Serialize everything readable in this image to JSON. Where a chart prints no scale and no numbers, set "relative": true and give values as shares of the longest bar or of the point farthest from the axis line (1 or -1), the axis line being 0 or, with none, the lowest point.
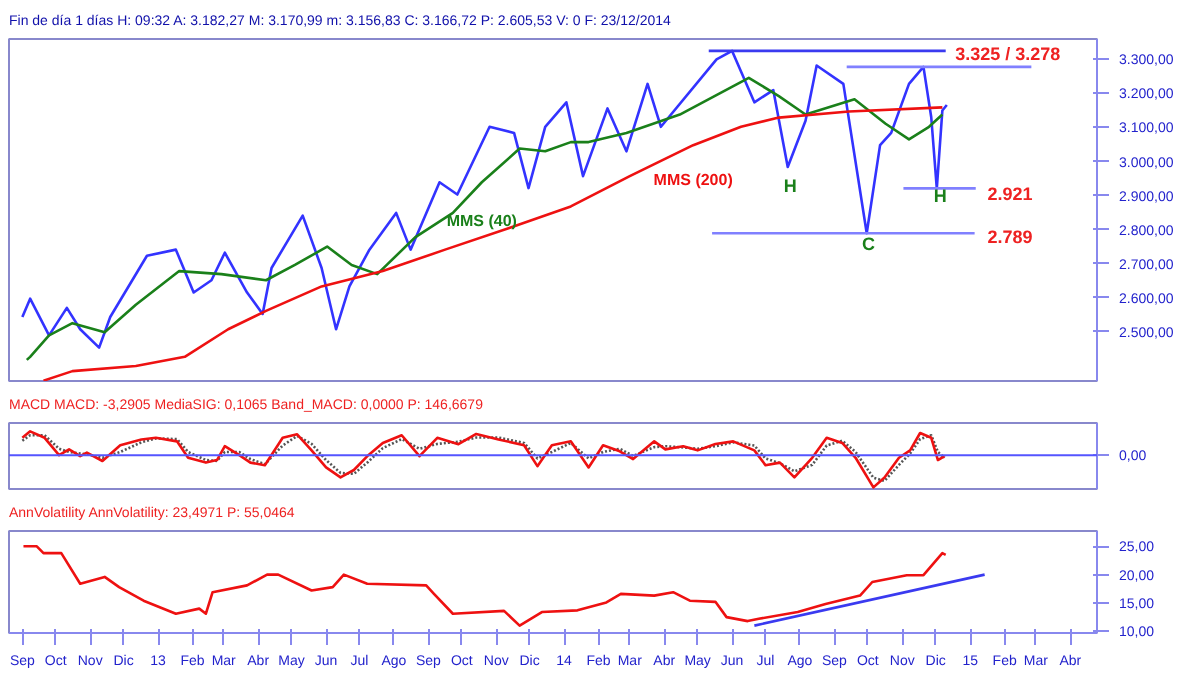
{
  "chart_data": [
    {
      "type": "line",
      "title": "Fin de día 1 días H: 09:32 A: 3.182,27 M: 3.170,99 m: 3.156,83 C: 3.166,72 P: 2.605,53 V: 0 F: 23/12/2014",
      "xlim": [
        "2012-08-20",
        "2015-04-25"
      ],
      "ylim": [
        2355,
        3360
      ],
      "tick_labels": "y",
      "yticks": [
        {
          "value": 2500,
          "label": "2.500,00"
        },
        {
          "value": 2600,
          "label": "2.600,00"
        },
        {
          "value": 2700,
          "label": "2.700,00"
        },
        {
          "value": 2800,
          "label": "2.800,00"
        },
        {
          "value": 2900,
          "label": "2.900,00"
        },
        {
          "value": 3000,
          "label": "3.000,00"
        },
        {
          "value": 3100,
          "label": "3.100,00"
        },
        {
          "value": 3200,
          "label": "3.200,00"
        },
        {
          "value": 3300,
          "label": "3.300,00"
        }
      ],
      "series": [
        {
          "color": "#3333ff",
          "x": [
            "2012-09-01",
            "2012-09-08",
            "2012-09-25",
            "2012-10-11",
            "2012-10-23",
            "2012-11-09",
            "2012-11-19",
            "2012-12-22",
            "2013-01-17",
            "2013-02-02",
            "2013-02-18",
            "2013-03-02",
            "2013-03-22",
            "2013-04-05",
            "2013-04-13",
            "2013-05-11",
            "2013-05-28",
            "2013-06-10",
            "2013-06-22",
            "2013-07-10",
            "2013-08-03",
            "2013-08-16",
            "2013-09-11",
            "2013-09-27",
            "2013-10-26",
            "2013-11-17",
            "2013-11-30",
            "2013-12-15",
            "2014-01-03",
            "2014-01-18",
            "2014-02-09",
            "2014-02-26",
            "2014-03-17",
            "2014-03-29",
            "2014-05-18",
            "2014-06-01",
            "2014-06-21",
            "2014-07-08",
            "2014-07-21",
            "2014-08-06",
            "2014-08-16",
            "2014-09-09",
            "2014-09-30",
            "2014-10-12",
            "2014-10-22",
            "2014-11-07",
            "2014-11-20",
            "2014-11-27",
            "2014-12-02",
            "2014-12-07",
            "2014-12-11"
          ],
          "values": [
            2543,
            2597,
            2489,
            2570,
            2507,
            2453,
            2543,
            2723,
            2741,
            2615,
            2651,
            2732,
            2615,
            2552,
            2687,
            2841,
            2687,
            2507,
            2633,
            2741,
            2849,
            2741,
            2939,
            2903,
            3102,
            3084,
            2922,
            3102,
            3174,
            2957,
            3156,
            3030,
            3228,
            3102,
            3300,
            3325,
            3174,
            3210,
            2984,
            3120,
            3282,
            3228,
            2789,
            3048,
            3084,
            3228,
            3278,
            3130,
            2921,
            3150,
            3166
          ]
        },
        {
          "name": "MMS (40)",
          "color": "#1a801a",
          "x": [
            "2012-09-05",
            "2012-09-08",
            "2012-09-25",
            "2012-10-16",
            "2012-11-14",
            "2012-12-12",
            "2013-01-20",
            "2013-02-27",
            "2013-04-08",
            "2013-05-04",
            "2013-06-02",
            "2013-06-24",
            "2013-07-17",
            "2013-08-20",
            "2013-09-23",
            "2013-10-19",
            "2013-11-22",
            "2013-12-15",
            "2014-01-07",
            "2014-01-23",
            "2014-02-26",
            "2014-04-15",
            "2014-06-16",
            "2014-07-13",
            "2014-08-06",
            "2014-09-19",
            "2014-10-17",
            "2014-11-07",
            "2014-11-25",
            "2014-12-07"
          ],
          "values": [
            2417,
            2426,
            2489,
            2525,
            2498,
            2579,
            2678,
            2669,
            2651,
            2696,
            2750,
            2696,
            2669,
            2777,
            2849,
            2939,
            3038,
            3030,
            3057,
            3057,
            3084,
            3138,
            3246,
            3192,
            3138,
            3183,
            3111,
            3065,
            3102,
            3138
          ]
        },
        {
          "name": "MMS (200)",
          "color": "#ee1111",
          "x": [
            "2012-09-20",
            "2012-10-16",
            "2012-12-12",
            "2013-01-25",
            "2013-03-05",
            "2013-04-08",
            "2013-05-28",
            "2013-07-22",
            "2013-09-16",
            "2013-11-12",
            "2014-01-07",
            "2014-03-01",
            "2014-04-27",
            "2014-06-09",
            "2014-07-13",
            "2014-09-14",
            "2014-12-07"
          ],
          "values": [
            2356,
            2384,
            2399,
            2426,
            2507,
            2561,
            2633,
            2678,
            2741,
            2804,
            2868,
            2957,
            3048,
            3102,
            3129,
            3147,
            3159
          ]
        },
        {
          "color": "#3a3af0",
          "x": [
            "2014-05-11",
            "2014-12-10"
          ],
          "values": [
            3325,
            3325
          ]
        },
        {
          "color": "#8080ff",
          "x": [
            "2014-09-12",
            "2015-02-25"
          ],
          "values": [
            3278,
            3278
          ]
        },
        {
          "color": "#8080ff",
          "x": [
            "2014-11-02",
            "2015-01-06"
          ],
          "values": [
            2921,
            2921
          ]
        },
        {
          "color": "#8080ff",
          "x": [
            "2014-05-14",
            "2015-01-05"
          ],
          "values": [
            2789,
            2789
          ]
        }
      ],
      "annotations": [
        "3.325 / 3.278",
        "2.921",
        "2.789",
        "H",
        "C",
        "H"
      ]
    },
    {
      "type": "line",
      "title": "MACD MACD: -3,2905 MediaSIG: 0,1065 Band_MACD: 0,0000 P: 146,6679",
      "relative": true,
      "xlim": [
        "2012-08-20",
        "2015-04-25"
      ],
      "tick_labels": false,
      "ref_lines": [
        {
          "axis": "y",
          "value": 0,
          "label": "0,00",
          "color": "#5555ff"
        }
      ],
      "series": [
        {
          "color": "#555555",
          "line_style": "dotted",
          "x": [
            "2012-09-01",
            "2012-09-08",
            "2012-09-21",
            "2012-10-04",
            "2012-10-13",
            "2012-10-23",
            "2012-10-29",
            "2012-11-12",
            "2012-11-28",
            "2012-12-17",
            "2012-12-30",
            "2013-01-18",
            "2013-01-28",
            "2013-02-13",
            "2013-02-23",
            "2013-03-02",
            "2013-03-15",
            "2013-03-25",
            "2013-04-07",
            "2013-04-23",
            "2013-05-06",
            "2013-05-19",
            "2013-06-01",
            "2013-06-14",
            "2013-06-26",
            "2013-07-09",
            "2013-07-22",
            "2013-08-08",
            "2013-08-24",
            "2013-09-09",
            "2013-09-28",
            "2013-10-14",
            "2013-11-03",
            "2013-11-26",
            "2013-12-08",
            "2013-12-21",
            "2014-01-07",
            "2014-01-23",
            "2014-02-05",
            "2014-02-20",
            "2014-03-04",
            "2014-03-23",
            "2014-04-02",
            "2014-04-18",
            "2014-05-01",
            "2014-05-17",
            "2014-06-02",
            "2014-06-21",
            "2014-07-01",
            "2014-07-14",
            "2014-07-27",
            "2014-08-12",
            "2014-08-25",
            "2014-09-08",
            "2014-09-20",
            "2014-10-06",
            "2014-10-16",
            "2014-10-29",
            "2014-11-08",
            "2014-11-17",
            "2014-11-27",
            "2014-12-03",
            "2014-12-09"
          ],
          "values": [
            0.45,
            0.62,
            0.62,
            0.2,
            0.1,
            0.05,
            0.03,
            -0.08,
            0.1,
            0.4,
            0.52,
            0.5,
            0.1,
            -0.15,
            -0.18,
            0.1,
            0.1,
            -0.12,
            -0.28,
            0.3,
            0.6,
            0.35,
            -0.15,
            -0.55,
            -0.58,
            -0.2,
            0.22,
            0.5,
            0.2,
            0.35,
            0.42,
            0.55,
            0.55,
            0.38,
            -0.1,
            0.1,
            0.38,
            -0.1,
            0.1,
            0.2,
            -0.02,
            0.25,
            0.28,
            0.24,
            0.2,
            0.28,
            0.4,
            0.3,
            -0.1,
            -0.25,
            -0.5,
            -0.3,
            0.3,
            0.45,
            0.1,
            -0.7,
            -0.8,
            -0.3,
            0.05,
            0.5,
            0.62,
            0.1,
            -0.08
          ]
        },
        {
          "color": "#ee1111",
          "x": [
            "2012-09-01",
            "2012-09-08",
            "2012-09-21",
            "2012-10-04",
            "2012-10-13",
            "2012-10-23",
            "2012-10-29",
            "2012-11-12",
            "2012-11-28",
            "2012-12-17",
            "2012-12-30",
            "2013-01-18",
            "2013-01-28",
            "2013-02-13",
            "2013-02-23",
            "2013-03-02",
            "2013-03-15",
            "2013-03-25",
            "2013-04-07",
            "2013-04-23",
            "2013-05-06",
            "2013-05-19",
            "2013-06-01",
            "2013-06-14",
            "2013-06-26",
            "2013-07-09",
            "2013-07-22",
            "2013-08-08",
            "2013-08-24",
            "2013-09-09",
            "2013-09-28",
            "2013-10-14",
            "2013-11-03",
            "2013-11-26",
            "2013-12-08",
            "2013-12-21",
            "2014-01-07",
            "2014-01-23",
            "2014-02-05",
            "2014-02-20",
            "2014-03-04",
            "2014-03-23",
            "2014-04-02",
            "2014-04-18",
            "2014-05-01",
            "2014-05-17",
            "2014-06-02",
            "2014-06-21",
            "2014-07-01",
            "2014-07-14",
            "2014-07-27",
            "2014-08-12",
            "2014-08-25",
            "2014-09-08",
            "2014-09-20",
            "2014-10-06",
            "2014-10-16",
            "2014-10-29",
            "2014-11-08",
            "2014-11-17",
            "2014-11-27",
            "2014-12-03",
            "2014-12-09"
          ],
          "values": [
            0.54,
            0.74,
            0.54,
            0,
            0.18,
            -0.03,
            0.08,
            -0.18,
            0.31,
            0.49,
            0.54,
            0.43,
            -0.08,
            -0.23,
            -0.15,
            0.28,
            0,
            -0.23,
            -0.31,
            0.54,
            0.65,
            0.15,
            -0.38,
            -0.69,
            -0.46,
            0,
            0.38,
            0.62,
            -0.03,
            0.54,
            0.34,
            0.66,
            0.49,
            0.31,
            -0.34,
            0.31,
            0.43,
            -0.38,
            0.31,
            0.12,
            -0.12,
            0.43,
            0.18,
            0.28,
            0.15,
            0.35,
            0.43,
            0.15,
            -0.31,
            -0.23,
            -0.69,
            -0.08,
            0.54,
            0.38,
            -0.08,
            -1.0,
            -0.69,
            -0.08,
            0.15,
            0.69,
            0.54,
            -0.15,
            -0.03
          ]
        }
      ]
    },
    {
      "type": "line",
      "title": "AnnVolatility AnnVolatility: 23,4971 P: 55,0464",
      "xlim": [
        "2012-08-20",
        "2015-04-25"
      ],
      "ylim": [
        9.7,
        27.7
      ],
      "yticks": [
        {
          "value": 10,
          "label": "10,00"
        },
        {
          "value": 15,
          "label": "15,00"
        },
        {
          "value": 20,
          "label": "20,00"
        },
        {
          "value": 25,
          "label": "25,00"
        }
      ],
      "xticks": [
        {
          "value": "2012-09-01",
          "label": "Sep"
        },
        {
          "value": "2012-10-01",
          "label": "Oct"
        },
        {
          "value": "2012-11-01",
          "label": "Nov"
        },
        {
          "value": "2012-12-01",
          "label": "Dic"
        },
        {
          "value": "2013-01-01",
          "label": "13"
        },
        {
          "value": "2013-02-01",
          "label": "Feb"
        },
        {
          "value": "2013-03-01",
          "label": "Mar"
        },
        {
          "value": "2013-04-01",
          "label": "Abr"
        },
        {
          "value": "2013-05-01",
          "label": "May"
        },
        {
          "value": "2013-06-01",
          "label": "Jun"
        },
        {
          "value": "2013-07-01",
          "label": "Jul"
        },
        {
          "value": "2013-08-01",
          "label": "Ago"
        },
        {
          "value": "2013-09-01",
          "label": "Sep"
        },
        {
          "value": "2013-10-01",
          "label": "Oct"
        },
        {
          "value": "2013-11-01",
          "label": "Nov"
        },
        {
          "value": "2013-12-01",
          "label": "Dic"
        },
        {
          "value": "2014-01-01",
          "label": "14"
        },
        {
          "value": "2014-02-01",
          "label": "Feb"
        },
        {
          "value": "2014-03-01",
          "label": "Mar"
        },
        {
          "value": "2014-04-01",
          "label": "Abr"
        },
        {
          "value": "2014-05-01",
          "label": "May"
        },
        {
          "value": "2014-06-01",
          "label": "Jun"
        },
        {
          "value": "2014-07-01",
          "label": "Jul"
        },
        {
          "value": "2014-08-01",
          "label": "Ago"
        },
        {
          "value": "2014-09-01",
          "label": "Sep"
        },
        {
          "value": "2014-10-01",
          "label": "Oct"
        },
        {
          "value": "2014-11-01",
          "label": "Nov"
        },
        {
          "value": "2014-12-01",
          "label": "Dic"
        },
        {
          "value": "2015-01-01",
          "label": "15"
        },
        {
          "value": "2015-02-01",
          "label": "Feb"
        },
        {
          "value": "2015-03-01",
          "label": "Mar"
        },
        {
          "value": "2015-04-01",
          "label": "Abr"
        }
      ],
      "series": [
        {
          "color": "#ee1111",
          "x": [
            "2012-09-02",
            "2012-09-14",
            "2012-09-20",
            "2012-10-06",
            "2012-10-23",
            "2012-11-14",
            "2012-11-27",
            "2012-12-19",
            "2013-01-17",
            "2013-02-07",
            "2013-02-13",
            "2013-02-19",
            "2013-03-22",
            "2013-04-09",
            "2013-04-19",
            "2013-05-19",
            "2013-06-07",
            "2013-06-17",
            "2013-07-08",
            "2013-08-30",
            "2013-09-06",
            "2013-09-23",
            "2013-11-08",
            "2013-11-22",
            "2013-12-12",
            "2014-01-13",
            "2014-02-08",
            "2014-02-21",
            "2014-03-23",
            "2014-04-09",
            "2014-04-24",
            "2014-05-17",
            "2014-05-27",
            "2014-06-15",
            "2014-06-25",
            "2014-07-30",
            "2014-08-24",
            "2014-09-24",
            "2014-10-05",
            "2014-11-05",
            "2014-11-20",
            "2014-12-07",
            "2014-12-10"
          ],
          "values": [
            25.0,
            25.0,
            23.8,
            23.8,
            18.4,
            19.6,
            17.8,
            15.4,
            13.1,
            14.0,
            13.1,
            16.9,
            18.1,
            20.0,
            20.0,
            17.2,
            17.8,
            20.0,
            18.4,
            18.1,
            16.6,
            13.1,
            13.6,
            11.0,
            13.4,
            13.7,
            15.1,
            16.6,
            16.3,
            16.9,
            15.4,
            15.2,
            12.5,
            11.8,
            12.2,
            13.4,
            14.8,
            16.3,
            18.7,
            19.9,
            19.9,
            23.8,
            23.5
          ]
        },
        {
          "color": "#3a3af0",
          "x": [
            "2014-06-21",
            "2015-01-14"
          ],
          "values": [
            11.0,
            20.0
          ]
        }
      ]
    }
  ]
}
